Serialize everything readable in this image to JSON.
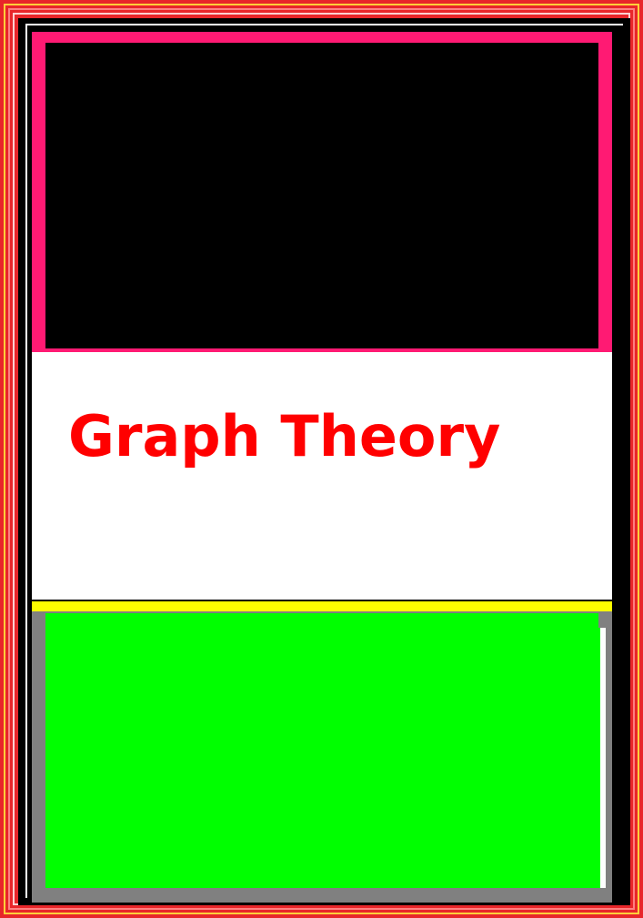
{
  "cover": {
    "title": "Graph Theory",
    "colors": {
      "outer_border": "#e8262a",
      "top_panel_frame": "#ff1a73",
      "top_panel_fill": "#000000",
      "middle_panel_fill": "#ffffff",
      "title_text": "#ff0000",
      "divider_strip": "#ffff00",
      "bottom_panel_frame": "#808080",
      "bottom_panel_fill": "#00ff00"
    }
  }
}
